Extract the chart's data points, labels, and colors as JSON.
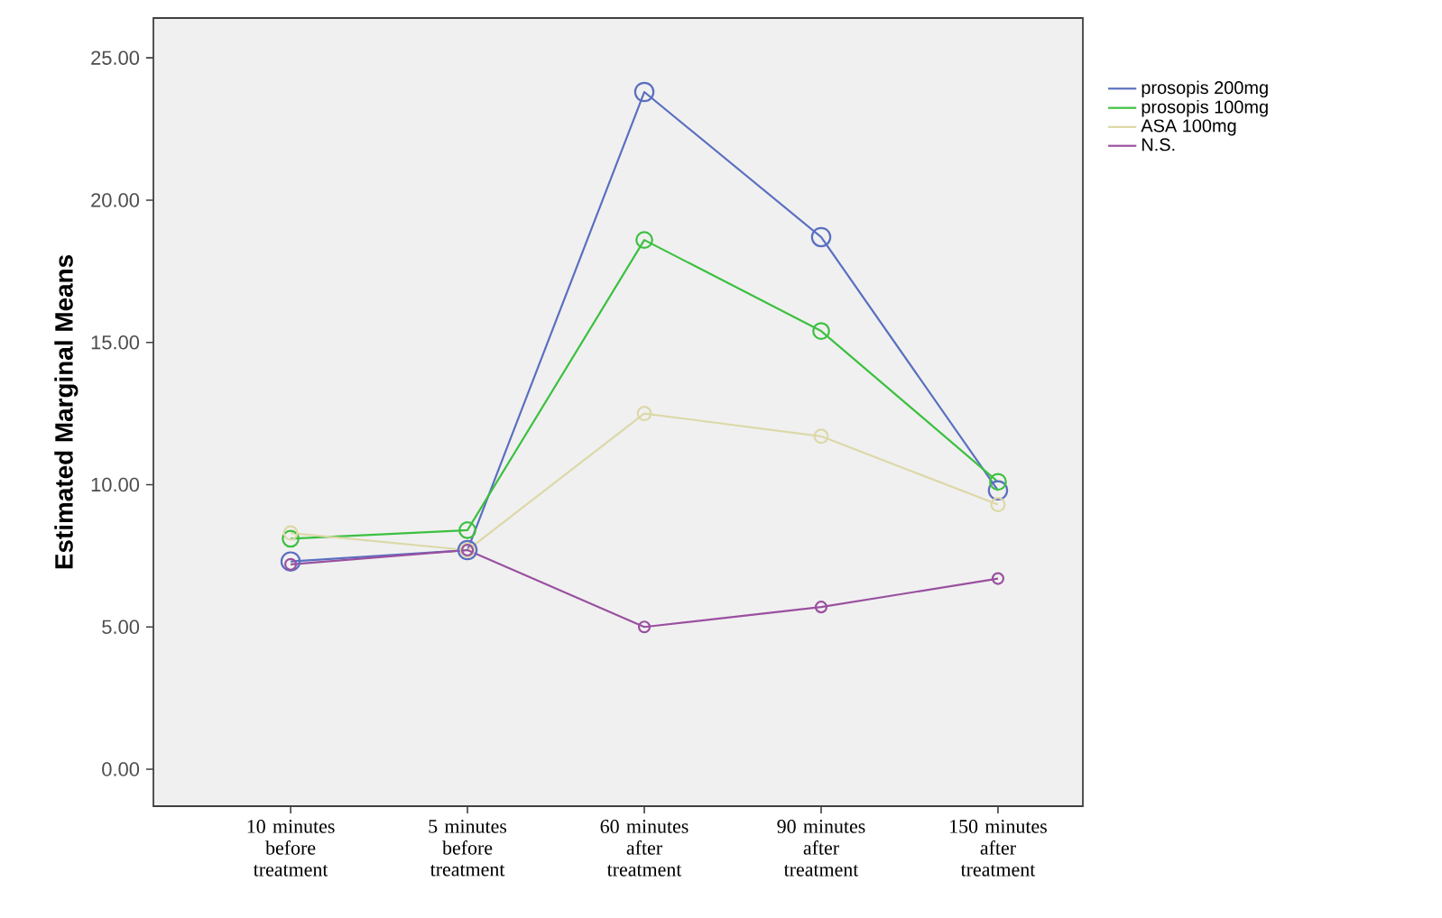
{
  "chart_data": {
    "type": "line",
    "ylabel": "Estimated Marginal Means",
    "categories": [
      "10 minutes before treatment",
      "5 minutes before treatment",
      "60 minutes after treatment",
      "90 minutes after treatment",
      "150 minutes after treatment"
    ],
    "series": [
      {
        "name": "prosopis 200mg",
        "color": "#5a6fc0",
        "values": [
          7.3,
          7.7,
          23.8,
          18.7,
          9.8
        ]
      },
      {
        "name": "prosopis 100mg",
        "color": "#3cc040",
        "values": [
          8.1,
          8.4,
          18.6,
          15.4,
          10.1
        ]
      },
      {
        "name": "ASA 100mg",
        "color": "#dcd8a8",
        "values": [
          8.3,
          7.7,
          12.5,
          11.7,
          9.3
        ]
      },
      {
        "name": "N.S.",
        "color": "#9a50a0",
        "values": [
          7.2,
          7.7,
          5.0,
          5.7,
          6.7
        ]
      }
    ],
    "ylim": [
      -1.3,
      26.4
    ],
    "yticks": [
      {
        "value": 0,
        "label": "0.00"
      },
      {
        "value": 5,
        "label": "5.00"
      },
      {
        "value": 10,
        "label": "10.00"
      },
      {
        "value": 15,
        "label": "15.00"
      },
      {
        "value": 20,
        "label": "20.00"
      },
      {
        "value": 25,
        "label": "25.00"
      }
    ],
    "marker": "circle",
    "line_style": "solid",
    "grid": false,
    "legend": "right"
  }
}
